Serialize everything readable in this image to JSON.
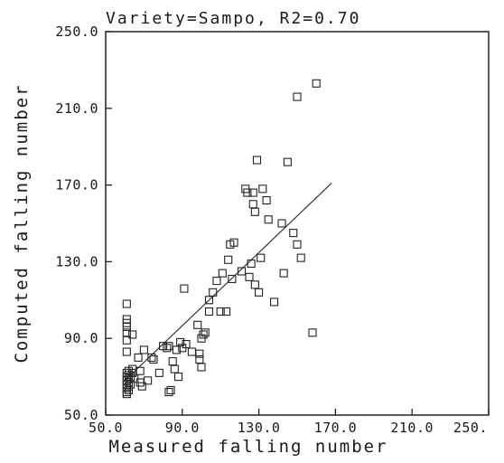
{
  "chart_data": {
    "type": "scatter",
    "title": "Variety=Sampo, R2=0.70",
    "xlabel": "Measured falling number",
    "ylabel": "Computed falling number",
    "xlim": [
      50,
      250
    ],
    "ylim": [
      50,
      250
    ],
    "x_ticks": [
      50,
      90,
      130,
      170,
      210,
      250
    ],
    "y_ticks": [
      50,
      90,
      130,
      170,
      210,
      250
    ],
    "x_tick_labels": [
      "50.0",
      "90.0",
      "130.0",
      "170.0",
      "210.0",
      "250."
    ],
    "y_tick_labels": [
      "50.0",
      "90.0",
      "130.0",
      "170.0",
      "210.0",
      "250.0"
    ],
    "grid": false,
    "marker": "open-square",
    "series": [
      {
        "points": [
          [
            61,
            108
          ],
          [
            61,
            100
          ],
          [
            61,
            98
          ],
          [
            61,
            96
          ],
          [
            61,
            93
          ],
          [
            61,
            89
          ],
          [
            61,
            83
          ],
          [
            61,
            72
          ],
          [
            61,
            70
          ],
          [
            61,
            68
          ],
          [
            61,
            66
          ],
          [
            61,
            64
          ],
          [
            61,
            62
          ],
          [
            61,
            61
          ],
          [
            62,
            73
          ],
          [
            62,
            71
          ],
          [
            62,
            69
          ],
          [
            62,
            67
          ],
          [
            62,
            65
          ],
          [
            62,
            63
          ],
          [
            63,
            70
          ],
          [
            63,
            66
          ],
          [
            64,
            92
          ],
          [
            64,
            74
          ],
          [
            64,
            72
          ],
          [
            65,
            69
          ],
          [
            67,
            80
          ],
          [
            68,
            73
          ],
          [
            68,
            67
          ],
          [
            69,
            65
          ],
          [
            70,
            84
          ],
          [
            72,
            68
          ],
          [
            74,
            80
          ],
          [
            75,
            79
          ],
          [
            78,
            72
          ],
          [
            80,
            86
          ],
          [
            82,
            85
          ],
          [
            83,
            86
          ],
          [
            83,
            62
          ],
          [
            84,
            63
          ],
          [
            85,
            78
          ],
          [
            86,
            74
          ],
          [
            87,
            84
          ],
          [
            88,
            70
          ],
          [
            89,
            88
          ],
          [
            90,
            85
          ],
          [
            91,
            116
          ],
          [
            92,
            87
          ],
          [
            95,
            83
          ],
          [
            98,
            97
          ],
          [
            99,
            79
          ],
          [
            99,
            82
          ],
          [
            100,
            90
          ],
          [
            100,
            75
          ],
          [
            101,
            92
          ],
          [
            102,
            93
          ],
          [
            104,
            104
          ],
          [
            104,
            110
          ],
          [
            106,
            114
          ],
          [
            108,
            120
          ],
          [
            110,
            104
          ],
          [
            111,
            124
          ],
          [
            113,
            104
          ],
          [
            114,
            131
          ],
          [
            115,
            139
          ],
          [
            116,
            121
          ],
          [
            117,
            140
          ],
          [
            121,
            125
          ],
          [
            123,
            168
          ],
          [
            124,
            166
          ],
          [
            125,
            122
          ],
          [
            126,
            129
          ],
          [
            127,
            160
          ],
          [
            127,
            166
          ],
          [
            128,
            156
          ],
          [
            128,
            118
          ],
          [
            129,
            183
          ],
          [
            130,
            114
          ],
          [
            131,
            132
          ],
          [
            132,
            168
          ],
          [
            134,
            162
          ],
          [
            135,
            152
          ],
          [
            138,
            109
          ],
          [
            142,
            150
          ],
          [
            143,
            124
          ],
          [
            145,
            182
          ],
          [
            148,
            145
          ],
          [
            150,
            216
          ],
          [
            150,
            139
          ],
          [
            152,
            132
          ],
          [
            158,
            93
          ],
          [
            160,
            223
          ]
        ]
      }
    ],
    "fit_line": {
      "x": [
        60,
        168
      ],
      "y": [
        68,
        171
      ]
    }
  }
}
